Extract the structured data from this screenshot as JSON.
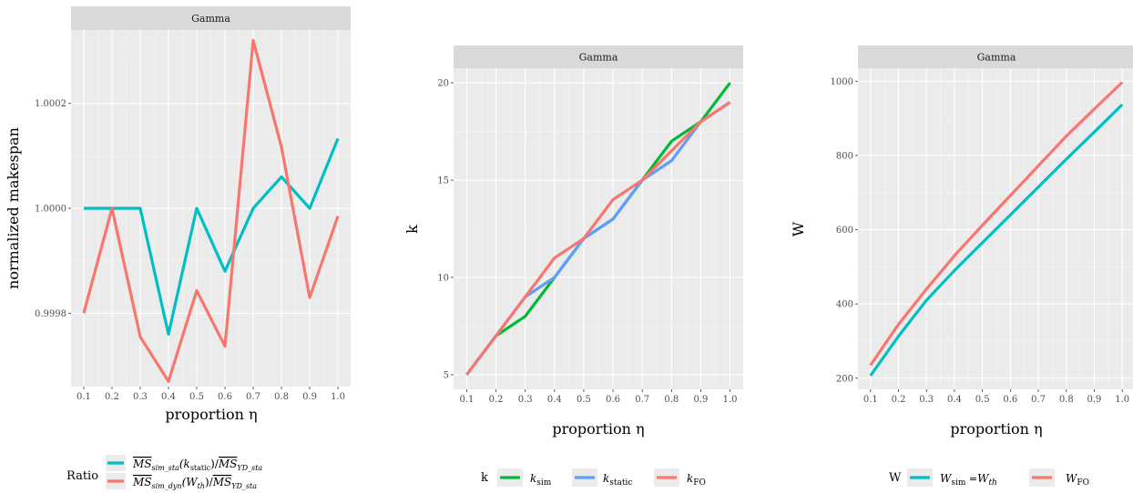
{
  "chart_data": [
    {
      "type": "line",
      "panel": "Gamma",
      "xlabel": "proportion η",
      "ylabel": "normalized makespan",
      "x": [
        0.1,
        0.2,
        0.3,
        0.4,
        0.5,
        0.6,
        0.7,
        0.8,
        0.9,
        1.0
      ],
      "x_tick_labels": [
        "0.1",
        "0.2",
        "0.3",
        "0.4",
        "0.5",
        "0.6",
        "0.7",
        "0.8",
        "0.9",
        "1.0"
      ],
      "y_ticks": [
        0.9998,
        1.0,
        1.0002
      ],
      "y_tick_labels": [
        "0.9998",
        "1.0000",
        "1.0002"
      ],
      "xlim": [
        0.055,
        1.045
      ],
      "ylim": [
        0.99966,
        1.00034
      ],
      "legend_title": "Ratio",
      "legend_position": "bottom",
      "series": [
        {
          "name": "MS_sim_sta(k_static)/MS_YD_sta",
          "color": "#00BFC4",
          "values": [
            1.0,
            1.0,
            1.0,
            0.99976,
            1.0,
            0.99988,
            1.0,
            1.00006,
            1.0,
            1.000133
          ]
        },
        {
          "name": "MS_sim_dyn(W_th)/MS_YD_sta",
          "color": "#F8766D",
          "values": [
            0.9998,
            1.0,
            0.999755,
            0.99967,
            0.999843,
            0.999737,
            1.00032,
            1.000117,
            0.99983,
            0.999985
          ]
        }
      ]
    },
    {
      "type": "line",
      "panel": "Gamma",
      "xlabel": "proportion η",
      "ylabel": "k",
      "x": [
        0.1,
        0.2,
        0.3,
        0.4,
        0.5,
        0.6,
        0.7,
        0.8,
        0.9,
        1.0
      ],
      "x_tick_labels": [
        "0.1",
        "0.2",
        "0.3",
        "0.4",
        "0.5",
        "0.6",
        "0.7",
        "0.8",
        "0.9",
        "1.0"
      ],
      "y_ticks": [
        5,
        10,
        15,
        20
      ],
      "y_tick_labels": [
        "5",
        "10",
        "15",
        "20"
      ],
      "xlim": [
        0.055,
        1.045
      ],
      "ylim": [
        4.25,
        20.75
      ],
      "legend_title": "k",
      "legend_position": "bottom",
      "series": [
        {
          "name": "k_sim",
          "color": "#00BA38",
          "values": [
            5,
            7,
            8,
            10,
            12,
            13,
            15,
            17,
            18,
            20
          ]
        },
        {
          "name": "k_static",
          "color": "#619CFF",
          "values": [
            5,
            7,
            9,
            10,
            12,
            13,
            15,
            16,
            18,
            19
          ]
        },
        {
          "name": "k_FO",
          "color": "#F8766D",
          "values": [
            5,
            7,
            9,
            11,
            12,
            14,
            15,
            16.5,
            18,
            19
          ]
        }
      ]
    },
    {
      "type": "line",
      "panel": "Gamma",
      "xlabel": "proportion η",
      "ylabel": "W",
      "x": [
        0.1,
        0.2,
        0.3,
        0.4,
        0.5,
        0.6,
        0.7,
        0.8,
        0.9,
        1.0
      ],
      "x_tick_labels": [
        "0.1",
        "0.2",
        "0.3",
        "0.4",
        "0.5",
        "0.6",
        "0.7",
        "0.8",
        "0.9",
        "1.0"
      ],
      "y_ticks": [
        200,
        400,
        600,
        800,
        1000
      ],
      "y_tick_labels": [
        "200",
        "400",
        "600",
        "800",
        "1000"
      ],
      "xlim": [
        0.055,
        1.045
      ],
      "ylim": [
        170,
        1035
      ],
      "legend_title": "W",
      "legend_position": "bottom",
      "series": [
        {
          "name": "W_sim = W_th",
          "color": "#00BFC4",
          "values": [
            207,
            313,
            410,
            490,
            565,
            640,
            715,
            790,
            863,
            937
          ]
        },
        {
          "name": "W_FO",
          "color": "#F8766D",
          "values": [
            235,
            345,
            440,
            530,
            612,
            692,
            772,
            852,
            925,
            997
          ]
        }
      ]
    }
  ]
}
